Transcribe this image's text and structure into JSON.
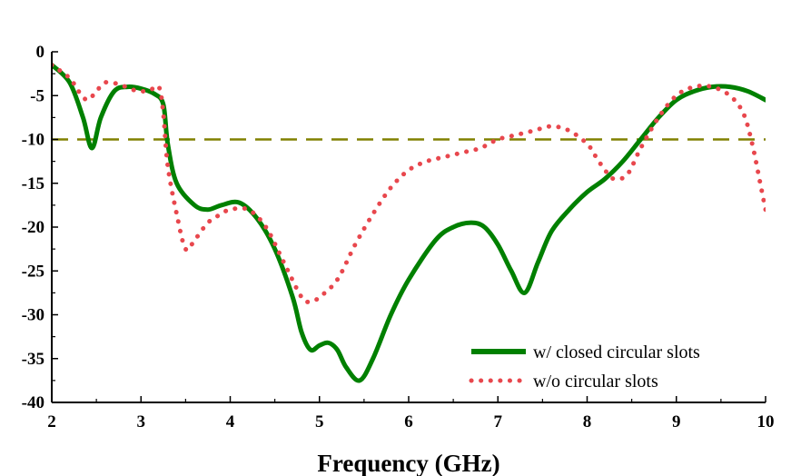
{
  "chart_data": {
    "type": "line",
    "title": "",
    "xlabel": "Frequency (GHz)",
    "ylabel": "",
    "xlim": [
      2,
      10
    ],
    "ylim": [
      -40,
      0
    ],
    "xticks": [
      2,
      3,
      4,
      5,
      6,
      7,
      8,
      9,
      10
    ],
    "yticks": [
      0,
      -5,
      -10,
      -15,
      -20,
      -25,
      -30,
      -35,
      -40
    ],
    "xtick_labels": [
      "2",
      "3",
      "4",
      "5",
      "6",
      "7",
      "8",
      "9",
      "10"
    ],
    "ytick_labels": [
      "0",
      "-5",
      "-10",
      "-15",
      "-20",
      "-25",
      "-30",
      "-35",
      "-40"
    ],
    "reference_line": {
      "y": -10,
      "style": "dashed",
      "color": "#808000"
    },
    "legend_position": "bottom-right",
    "series": [
      {
        "name": "w/ closed circular slots",
        "style": "solid",
        "color": "#008000",
        "x": [
          2.0,
          2.2,
          2.35,
          2.45,
          2.55,
          2.7,
          2.85,
          3.0,
          3.15,
          3.25,
          3.3,
          3.4,
          3.6,
          3.75,
          3.9,
          4.1,
          4.3,
          4.5,
          4.7,
          4.8,
          4.9,
          5.0,
          5.1,
          5.2,
          5.3,
          5.45,
          5.6,
          5.8,
          6.0,
          6.3,
          6.5,
          6.7,
          6.85,
          7.0,
          7.15,
          7.3,
          7.45,
          7.6,
          7.8,
          8.0,
          8.2,
          8.4,
          8.6,
          8.8,
          9.0,
          9.2,
          9.4,
          9.6,
          9.8,
          10.0
        ],
        "y": [
          -1.5,
          -3.5,
          -7.5,
          -11.0,
          -7.5,
          -4.5,
          -4.0,
          -4.2,
          -4.8,
          -6.0,
          -10.5,
          -15.0,
          -17.5,
          -18.0,
          -17.5,
          -17.2,
          -19.0,
          -22.5,
          -28.0,
          -32.0,
          -34.0,
          -33.5,
          -33.2,
          -34.0,
          -36.0,
          -37.5,
          -35.0,
          -30.0,
          -26.0,
          -21.5,
          -20.0,
          -19.5,
          -20.0,
          -22.0,
          -25.0,
          -27.5,
          -24.0,
          -20.5,
          -18.0,
          -16.0,
          -14.5,
          -12.5,
          -10.0,
          -7.5,
          -5.5,
          -4.5,
          -4.0,
          -4.0,
          -4.5,
          -5.5
        ]
      },
      {
        "name": "w/o circular slots",
        "style": "dotted",
        "color": "#e8474d",
        "x": [
          2.0,
          2.2,
          2.3,
          2.4,
          2.5,
          2.6,
          2.75,
          2.9,
          3.0,
          3.1,
          3.2,
          3.25,
          3.3,
          3.4,
          3.5,
          3.6,
          3.75,
          3.9,
          4.0,
          4.2,
          4.4,
          4.6,
          4.8,
          4.9,
          5.0,
          5.2,
          5.4,
          5.6,
          5.8,
          6.0,
          6.2,
          6.4,
          6.6,
          6.8,
          7.0,
          7.2,
          7.4,
          7.6,
          7.8,
          8.0,
          8.1,
          8.2,
          8.3,
          8.45,
          8.6,
          8.8,
          9.0,
          9.2,
          9.4,
          9.6,
          9.75,
          9.85,
          9.95,
          10.0
        ],
        "y": [
          -1.5,
          -3.0,
          -4.5,
          -5.5,
          -4.5,
          -3.5,
          -3.7,
          -4.3,
          -4.5,
          -4.4,
          -4.0,
          -7.0,
          -13.0,
          -18.5,
          -22.5,
          -21.5,
          -19.5,
          -18.5,
          -18.0,
          -18.0,
          -20.0,
          -24.0,
          -28.0,
          -28.5,
          -28.0,
          -26.0,
          -22.0,
          -18.5,
          -15.5,
          -13.5,
          -12.5,
          -12.0,
          -11.5,
          -11.0,
          -10.0,
          -9.5,
          -9.0,
          -8.5,
          -9.0,
          -10.5,
          -12.0,
          -13.5,
          -14.5,
          -14.0,
          -11.0,
          -7.5,
          -5.0,
          -4.0,
          -4.0,
          -5.0,
          -7.0,
          -10.5,
          -15.5,
          -18.0
        ]
      }
    ]
  }
}
